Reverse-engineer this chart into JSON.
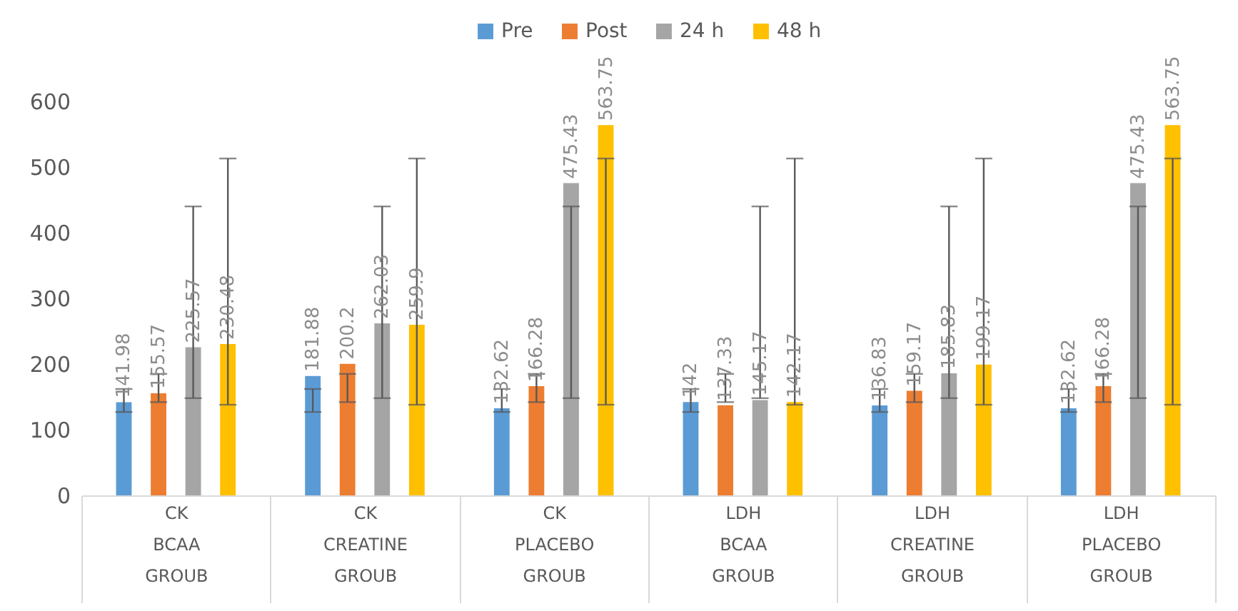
{
  "chart_data": {
    "type": "bar",
    "categories": [
      "CK\nBCAA\nGROUB",
      "CK\nCREATINE\nGROUB",
      "CK\nPLACEBO\nGROUB",
      "LDH\nBCAA\nGROUB",
      "LDH\nCREATINE\nGROUB",
      "LDH\nPLACEBO\nGROUB"
    ],
    "series": [
      {
        "name": "Pre",
        "color": "#5b9bd5",
        "values": [
          141.98,
          181.88,
          132.62,
          142,
          136.83,
          132.62
        ],
        "errors": [
          [
            127,
            162
          ],
          [
            127,
            162
          ],
          [
            127,
            162
          ],
          [
            127,
            162
          ],
          [
            127,
            162
          ],
          [
            127,
            162
          ]
        ]
      },
      {
        "name": "Post",
        "color": "#ed7d31",
        "values": [
          155.57,
          200.2,
          166.28,
          137.33,
          159.17,
          166.28
        ],
        "errors": [
          [
            142,
            185
          ],
          [
            142,
            185
          ],
          [
            142,
            185
          ],
          [
            142,
            185
          ],
          [
            142,
            185
          ],
          [
            142,
            185
          ]
        ]
      },
      {
        "name": "24 h",
        "color": "#a5a5a5",
        "values": [
          225.57,
          262.03,
          475.43,
          145.17,
          185.83,
          475.43
        ],
        "errors": [
          [
            148,
            440
          ],
          [
            148,
            440
          ],
          [
            148,
            440
          ],
          [
            148,
            440
          ],
          [
            148,
            440
          ],
          [
            148,
            440
          ]
        ]
      },
      {
        "name": "48 h",
        "color": "#ffc000",
        "values": [
          230.48,
          259.9,
          563.75,
          142.17,
          199.17,
          563.75
        ],
        "errors": [
          [
            138,
            513
          ],
          [
            138,
            513
          ],
          [
            138,
            513
          ],
          [
            138,
            513
          ],
          [
            138,
            513
          ],
          [
            138,
            513
          ]
        ]
      }
    ],
    "ylim": [
      0,
      600
    ],
    "yticks": [
      0,
      100,
      200,
      300,
      400,
      500,
      600
    ],
    "grid": false,
    "legend": "top",
    "data_labels": true
  }
}
